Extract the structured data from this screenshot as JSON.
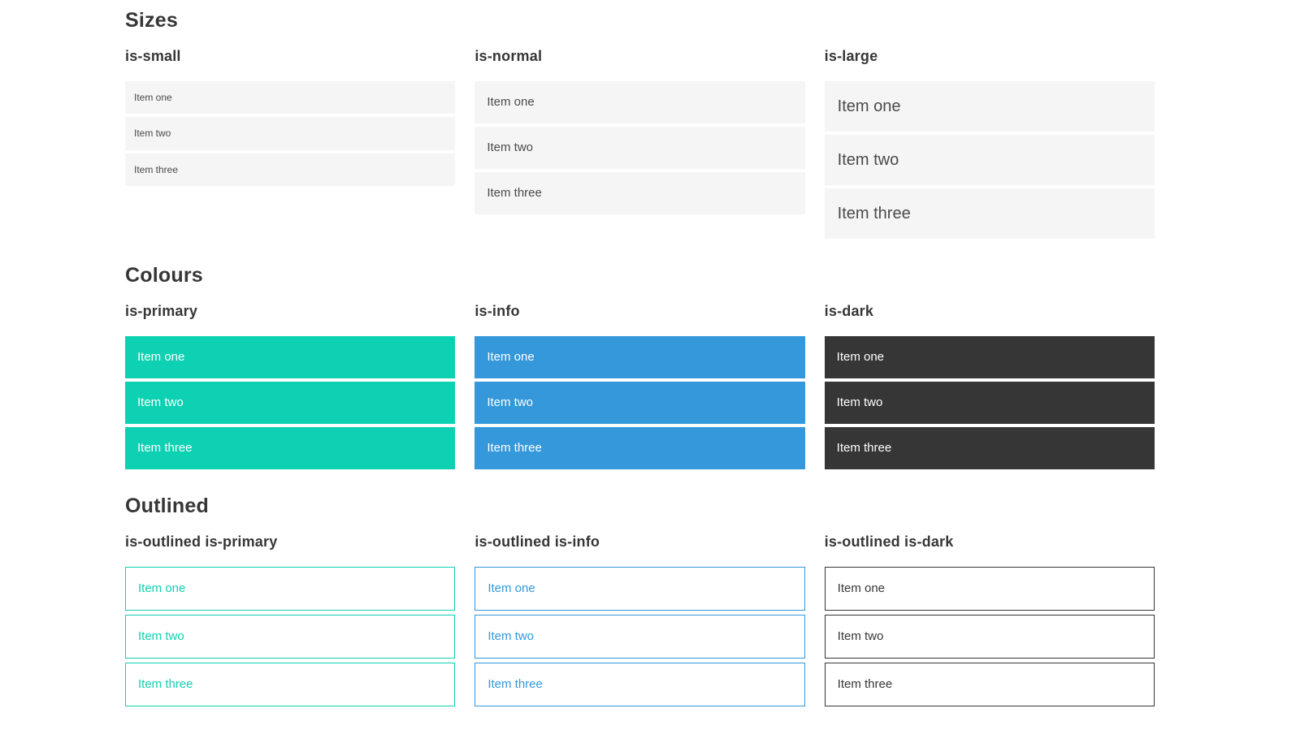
{
  "theme": {
    "primary": "#0dd1b2",
    "info": "#3498db",
    "dark": "#363636",
    "item_bg": "#f5f5f5",
    "item_text": "#4a4a4a",
    "heading_text": "#363636",
    "page_bg": "#ffffff"
  },
  "sections": [
    {
      "title": "Sizes",
      "groups": [
        {
          "label": "is-small",
          "items": [
            "Item one",
            "Item two",
            "Item three"
          ]
        },
        {
          "label": "is-normal",
          "items": [
            "Item one",
            "Item two",
            "Item three"
          ]
        },
        {
          "label": "is-large",
          "items": [
            "Item one",
            "Item two",
            "Item three"
          ]
        }
      ]
    },
    {
      "title": "Colours",
      "groups": [
        {
          "label": "is-primary",
          "items": [
            "Item one",
            "Item two",
            "Item three"
          ]
        },
        {
          "label": "is-info",
          "items": [
            "Item one",
            "Item two",
            "Item three"
          ]
        },
        {
          "label": "is-dark",
          "items": [
            "Item one",
            "Item two",
            "Item three"
          ]
        }
      ]
    },
    {
      "title": "Outlined",
      "groups": [
        {
          "label": "is-outlined is-primary",
          "items": [
            "Item one",
            "Item two",
            "Item three"
          ]
        },
        {
          "label": "is-outlined is-info",
          "items": [
            "Item one",
            "Item two",
            "Item three"
          ]
        },
        {
          "label": "is-outlined is-dark",
          "items": [
            "Item one",
            "Item two",
            "Item three"
          ]
        }
      ]
    }
  ]
}
